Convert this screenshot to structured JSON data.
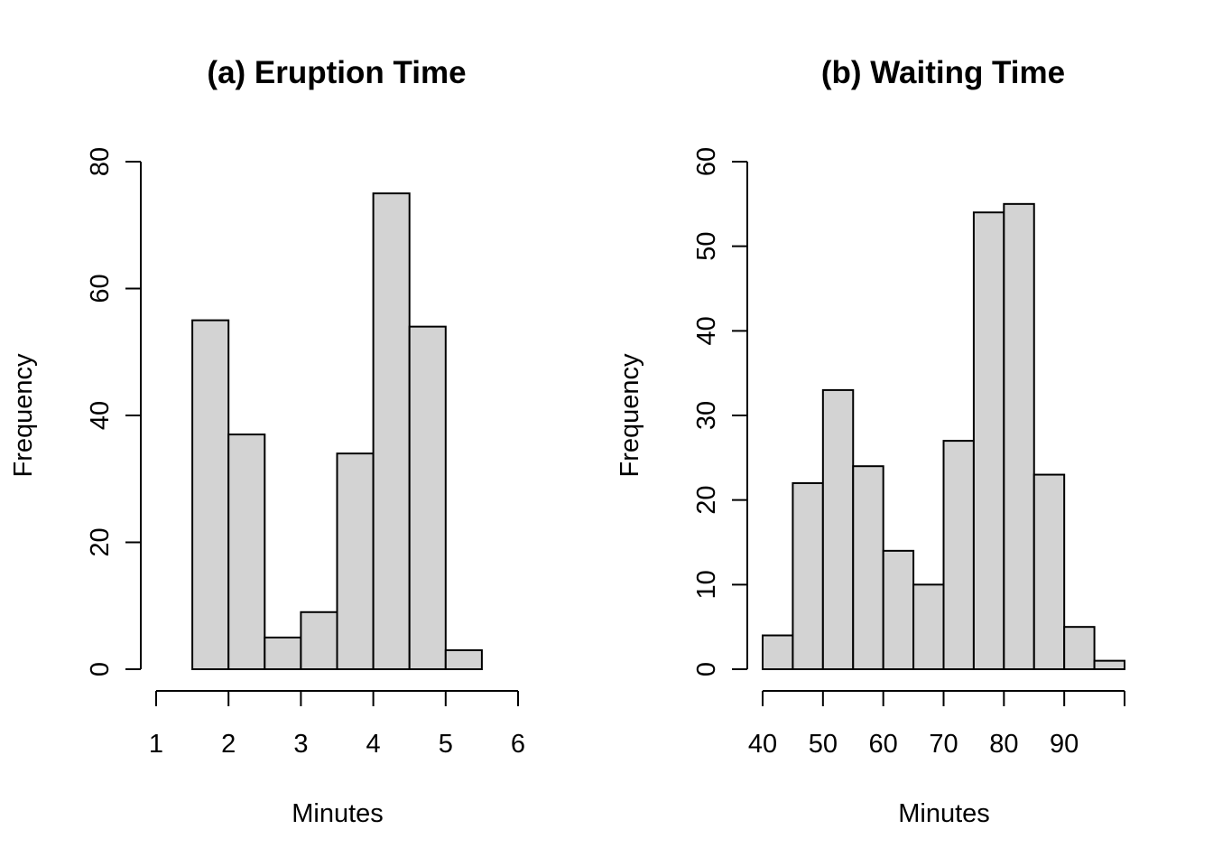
{
  "chart_data": [
    {
      "type": "histogram",
      "title": "(a) Eruption Time",
      "xlabel": "Minutes",
      "ylabel": "Frequency",
      "xlim": [
        1,
        6
      ],
      "ylim": [
        0,
        80
      ],
      "xticks": [
        1,
        2,
        3,
        4,
        5,
        6
      ],
      "yticks": [
        0,
        20,
        40,
        60,
        80
      ],
      "bins": [
        {
          "from": 1.5,
          "to": 2.0,
          "count": 55
        },
        {
          "from": 2.0,
          "to": 2.5,
          "count": 37
        },
        {
          "from": 2.5,
          "to": 3.0,
          "count": 5
        },
        {
          "from": 3.0,
          "to": 3.5,
          "count": 9
        },
        {
          "from": 3.5,
          "to": 4.0,
          "count": 34
        },
        {
          "from": 4.0,
          "to": 4.5,
          "count": 75
        },
        {
          "from": 4.5,
          "to": 5.0,
          "count": 54
        },
        {
          "from": 5.0,
          "to": 5.5,
          "count": 3
        }
      ],
      "bar_color": "#d3d3d3"
    },
    {
      "type": "histogram",
      "title": "(b) Waiting Time",
      "xlabel": "Minutes",
      "ylabel": "Frequency",
      "xlim": [
        40,
        100
      ],
      "ylim": [
        0,
        60
      ],
      "xticks": [
        40,
        50,
        60,
        70,
        80,
        90,
        100
      ],
      "xtick_labels": [
        "40",
        "50",
        "60",
        "70",
        "80",
        "90",
        ""
      ],
      "yticks": [
        0,
        10,
        20,
        30,
        40,
        50,
        60
      ],
      "bins": [
        {
          "from": 40,
          "to": 45,
          "count": 4
        },
        {
          "from": 45,
          "to": 50,
          "count": 22
        },
        {
          "from": 50,
          "to": 55,
          "count": 33
        },
        {
          "from": 55,
          "to": 60,
          "count": 24
        },
        {
          "from": 60,
          "to": 65,
          "count": 14
        },
        {
          "from": 65,
          "to": 70,
          "count": 10
        },
        {
          "from": 70,
          "to": 75,
          "count": 27
        },
        {
          "from": 75,
          "to": 80,
          "count": 54
        },
        {
          "from": 80,
          "to": 85,
          "count": 55
        },
        {
          "from": 85,
          "to": 90,
          "count": 23
        },
        {
          "from": 90,
          "to": 95,
          "count": 5
        },
        {
          "from": 95,
          "to": 100,
          "count": 1
        }
      ],
      "bar_color": "#d3d3d3"
    }
  ]
}
